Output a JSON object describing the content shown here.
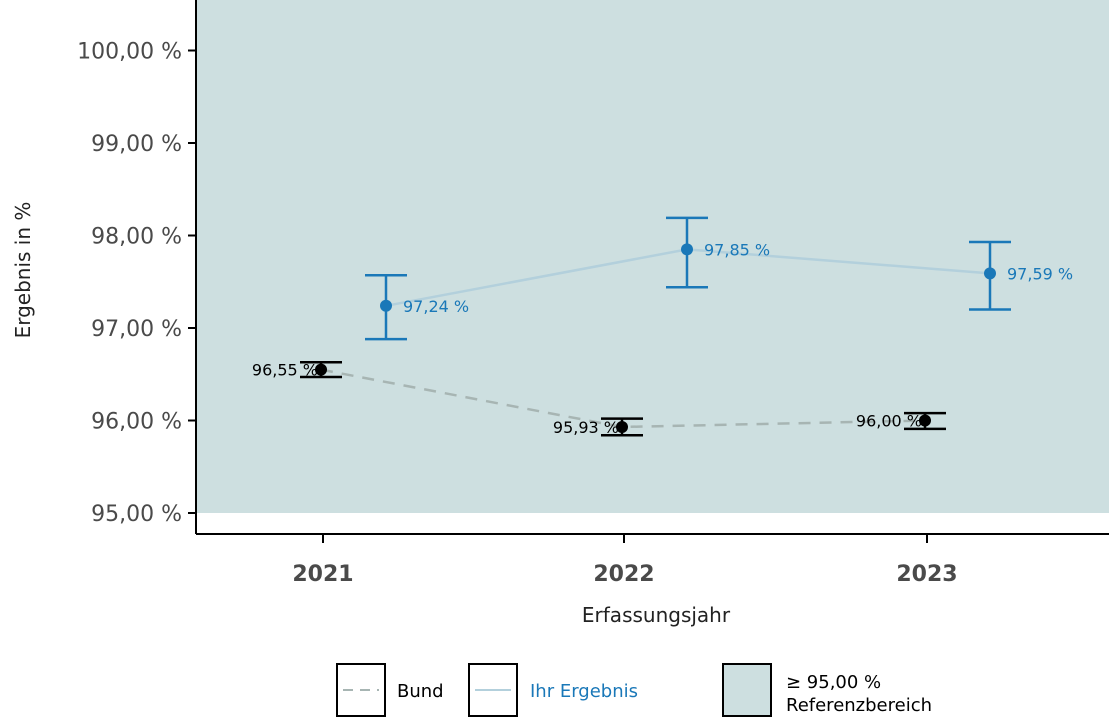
{
  "chart_data": {
    "type": "line",
    "x": [
      "2021",
      "2022",
      "2023"
    ],
    "xlabel": "Erfassungsjahr",
    "ylabel": "Ergebnis in %",
    "ylim": [
      95.0,
      100.0
    ],
    "yticks": [
      95.0,
      96.0,
      97.0,
      98.0,
      99.0,
      100.0
    ],
    "ytick_labels": [
      "95,00 %",
      "96,00 %",
      "97,00 %",
      "98,00 %",
      "99,00 %",
      "100,00 %"
    ],
    "reference_area": {
      "min": 95.0,
      "color": "#cddfe0",
      "label": "Referenzbereich",
      "label_value": "≥  95,00   %"
    },
    "series": [
      {
        "name": "Bund",
        "color": "#000000",
        "line_color": "#a7b5b3",
        "line_style": "dashed",
        "values": [
          96.55,
          95.93,
          96.0
        ],
        "ci_lower": [
          96.47,
          95.84,
          95.91
        ],
        "ci_upper": [
          96.63,
          96.02,
          96.08
        ],
        "labels": [
          "96,55 %",
          "95,93 %",
          "96,00 %"
        ]
      },
      {
        "name": "Ihr  Ergebnis",
        "color": "#1a78b8",
        "line_color": "#b3d0dc",
        "line_style": "solid",
        "values": [
          97.24,
          97.85,
          97.59
        ],
        "ci_lower": [
          96.88,
          97.44,
          97.2
        ],
        "ci_upper": [
          97.57,
          98.19,
          97.93
        ],
        "labels": [
          "97,24 %",
          "97,85 %",
          "97,59 %"
        ]
      }
    ],
    "legend_position": "bottom"
  }
}
